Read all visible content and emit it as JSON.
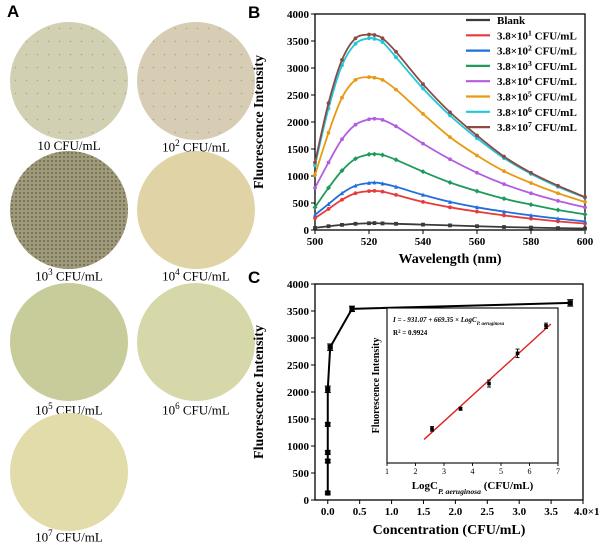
{
  "panels": {
    "a": {
      "letter": "A"
    },
    "b": {
      "letter": "B"
    },
    "c": {
      "letter": "C"
    }
  },
  "plates": [
    {
      "base": "10",
      "exp": "",
      "unit": "CFU/mL",
      "color": "#d2d0b2",
      "rim": "#b8b696"
    },
    {
      "base": "10",
      "exp": "2",
      "unit": "CFU/mL",
      "color": "#d6cdb4",
      "rim": "#bab096"
    },
    {
      "base": "10",
      "exp": "3",
      "unit": "CFU/mL",
      "color": "#9e9a7a",
      "rim": "#7e7a5c"
    },
    {
      "base": "10",
      "exp": "4",
      "unit": "CFU/mL",
      "color": "#e0d4a6",
      "rim": "#c2b686"
    },
    {
      "base": "10",
      "exp": "5",
      "unit": "CFU/mL",
      "color": "#c8cc9a",
      "rim": "#aab07e"
    },
    {
      "base": "10",
      "exp": "6",
      "unit": "CFU/mL",
      "color": "#d6d8aa",
      "rim": "#b8ba8c"
    },
    {
      "base": "10",
      "exp": "7",
      "unit": "CFU/mL",
      "color": "#e2dcaa",
      "rim": "#c4be8c"
    }
  ],
  "chart_data": [
    {
      "type": "line",
      "xlabel": "Wavelength (nm)",
      "ylabel": "Fluorescence Intensity",
      "xlim": [
        500,
        600
      ],
      "ylim": [
        0,
        4000
      ],
      "xticks": [
        500,
        520,
        540,
        560,
        580,
        600
      ],
      "yticks": [
        0,
        500,
        1000,
        1500,
        2000,
        2500,
        3000,
        3500,
        4000
      ],
      "x": [
        500,
        505,
        510,
        515,
        520,
        522,
        525,
        530,
        540,
        550,
        560,
        570,
        580,
        590,
        600
      ],
      "series": [
        {
          "name": "Blank",
          "base": "",
          "exp": "",
          "unit": "",
          "color": "#3a3a3a",
          "marker": "square",
          "values": [
            40,
            70,
            95,
            115,
            125,
            128,
            122,
            115,
            100,
            85,
            70,
            55,
            45,
            35,
            28
          ]
        },
        {
          "name": "3.8×10^1 CFU/mL",
          "base": "3.8×10",
          "exp": "1",
          "unit": " CFU/mL",
          "color": "#e83a3a",
          "marker": "circle",
          "values": [
            220,
            390,
            560,
            680,
            720,
            725,
            710,
            650,
            520,
            420,
            340,
            270,
            210,
            160,
            120
          ]
        },
        {
          "name": "3.8×10^2 CFU/mL",
          "base": "3.8×10",
          "exp": "2",
          "unit": " CFU/mL",
          "color": "#1f6fdc",
          "marker": "triangle",
          "values": [
            280,
            480,
            680,
            820,
            870,
            880,
            860,
            800,
            650,
            520,
            420,
            340,
            270,
            210,
            160
          ]
        },
        {
          "name": "3.8×10^3 CFU/mL",
          "base": "3.8×10",
          "exp": "3",
          "unit": " CFU/mL",
          "color": "#1e9a5a",
          "marker": "diamond",
          "values": [
            420,
            780,
            1100,
            1320,
            1400,
            1405,
            1390,
            1300,
            1080,
            880,
            720,
            580,
            470,
            370,
            290
          ]
        },
        {
          "name": "3.8×10^4 CFU/mL",
          "base": "3.8×10",
          "exp": "4",
          "unit": " CFU/mL",
          "color": "#b35ce0",
          "marker": "circle",
          "values": [
            780,
            1250,
            1680,
            1950,
            2050,
            2060,
            2040,
            1920,
            1600,
            1310,
            1060,
            850,
            680,
            540,
            420
          ]
        },
        {
          "name": "3.8×10^5 CFU/mL",
          "base": "3.8×10",
          "exp": "5",
          "unit": " CFU/mL",
          "color": "#e89a12",
          "marker": "circle",
          "values": [
            1020,
            1800,
            2450,
            2780,
            2830,
            2820,
            2780,
            2600,
            2150,
            1720,
            1380,
            1090,
            870,
            680,
            520
          ]
        },
        {
          "name": "3.8×10^6 CFU/mL",
          "base": "3.8×10",
          "exp": "6",
          "unit": " CFU/mL",
          "color": "#1fc8d8",
          "marker": "circle",
          "values": [
            1200,
            2250,
            3050,
            3450,
            3550,
            3540,
            3480,
            3200,
            2620,
            2120,
            1700,
            1330,
            1040,
            800,
            600
          ]
        },
        {
          "name": "3.8×10^7 CFU/mL",
          "base": "3.8×10",
          "exp": "7",
          "unit": " CFU/mL",
          "color": "#8a4a46",
          "marker": "circle",
          "values": [
            1250,
            2350,
            3150,
            3550,
            3620,
            3610,
            3550,
            3300,
            2700,
            2180,
            1750,
            1360,
            1060,
            820,
            610
          ]
        }
      ]
    },
    {
      "type": "scatter",
      "xlabel": "Concentration (CFU/mL)",
      "ylabel": "Fluorescence Intensity",
      "xlim": [
        -0.2,
        4.0
      ],
      "ylim": [
        0,
        4000
      ],
      "xticks": [
        0.0,
        0.5,
        1.0,
        1.5,
        2.0,
        2.5,
        3.0,
        3.5,
        4.0
      ],
      "yticks": [
        0,
        500,
        1000,
        1500,
        2000,
        2500,
        3000,
        3500,
        4000
      ],
      "x_tick_labels": [
        "0.0",
        "0.5",
        "1.0",
        "1.5",
        "2.0",
        "2.5",
        "3.0",
        "3.5",
        "4.0×10"
      ],
      "x_tick_last_exp": "7",
      "x": [
        0.0,
        0.0,
        0.0,
        0.0,
        0.0,
        0.038,
        0.38,
        3.8
      ],
      "values": [
        130,
        720,
        880,
        1400,
        2050,
        2830,
        3540,
        3650
      ],
      "errors": [
        20,
        30,
        30,
        30,
        60,
        60,
        50,
        60
      ],
      "color": "#000000"
    },
    {
      "type": "scatter",
      "inset": true,
      "xlabel_pre": "LogC",
      "xlabel_sub": "P. aeruginosa",
      "xlabel_post": " (CFU/mL)",
      "ylabel": "Fluorescence Intensity",
      "xlim": [
        1,
        7
      ],
      "ylim": [
        0,
        4000
      ],
      "xticks": [
        1,
        2,
        3,
        4,
        5,
        6,
        7
      ],
      "x": [
        2.58,
        3.58,
        4.58,
        5.58,
        6.58
      ],
      "values": [
        880,
        1400,
        2050,
        2830,
        3540
      ],
      "errors": [
        60,
        40,
        90,
        110,
        70
      ],
      "fit": {
        "slope": 669.35,
        "intercept": -931.07,
        "color": "#e02020"
      },
      "equation_pre": "I = - 931.07  +  669.35 × LogC",
      "equation_sub": "P. aeruginosa",
      "r2_label": "R",
      "r2_exp": "2",
      "r2_value": " = 0.9924"
    }
  ]
}
